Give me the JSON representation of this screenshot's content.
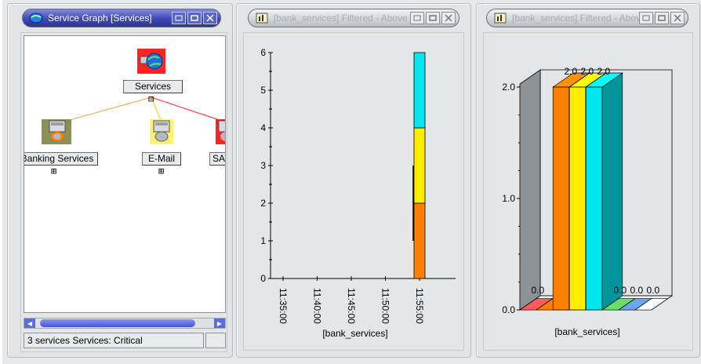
{
  "panes": {
    "service_graph": {
      "title": "Service Graph [Services]",
      "nodes": {
        "root": {
          "label": "Services",
          "icon": "globe-server-icon"
        },
        "banking": {
          "label": "Banking Services",
          "icon": "server-icon"
        },
        "email": {
          "label": "E-Mail",
          "icon": "server-icon"
        },
        "sap": {
          "label": "SA",
          "icon": "server-icon"
        }
      },
      "status": "3 services  Services: Critical"
    },
    "line_chart": {
      "title": "[bank_services] Filtered - Above Me"
    },
    "bar_chart": {
      "title": "[bank_services] Filtered - Above Me"
    }
  },
  "colors": {
    "orange": "#ff7f00",
    "yellow": "#ffee00",
    "cyan": "#00e5ef",
    "red": "#ff3b3b",
    "green": "#66e066",
    "blue": "#6aa6ee",
    "gray": "#8d9296"
  },
  "chart_data": [
    {
      "type": "bar",
      "stacked": true,
      "categories": [
        "11:35:00",
        "11:40:00",
        "11:45:00",
        "11:50:00",
        "11:55:00"
      ],
      "series": [
        {
          "values": [
            0,
            0,
            0,
            0,
            2
          ],
          "color": "#ff7f00"
        },
        {
          "values": [
            0,
            0,
            0,
            0,
            2
          ],
          "color": "#ffee00"
        },
        {
          "values": [
            0,
            0,
            0,
            0,
            2
          ],
          "color": "#00e5ef"
        }
      ],
      "xlabel": "[bank_services]",
      "ylim": [
        0,
        6
      ],
      "yticks": [
        "0",
        "1",
        "2",
        "3",
        "4",
        "5",
        "6"
      ]
    },
    {
      "type": "bar",
      "three_d": true,
      "categories": [
        "",
        "",
        "",
        "",
        "",
        "",
        "",
        ""
      ],
      "values": [
        0.0,
        0.0,
        2.0,
        2.0,
        2.0,
        0.0,
        0.0,
        0.0
      ],
      "data_labels": [
        "0.0",
        "",
        "2.0",
        "2.0",
        "2.0",
        "0.0",
        "0.0",
        "0.0"
      ],
      "colors": [
        "#ff5a5a",
        "#ff7f00",
        "#ff7f00",
        "#ffee00",
        "#00e5ef",
        "#66e066",
        "#6aa6ee",
        "#ffffff"
      ],
      "xlabel": "[bank_services]",
      "ylim": [
        0,
        2.0
      ],
      "yticks": [
        "0.0",
        "1.0",
        "2.0"
      ]
    }
  ]
}
